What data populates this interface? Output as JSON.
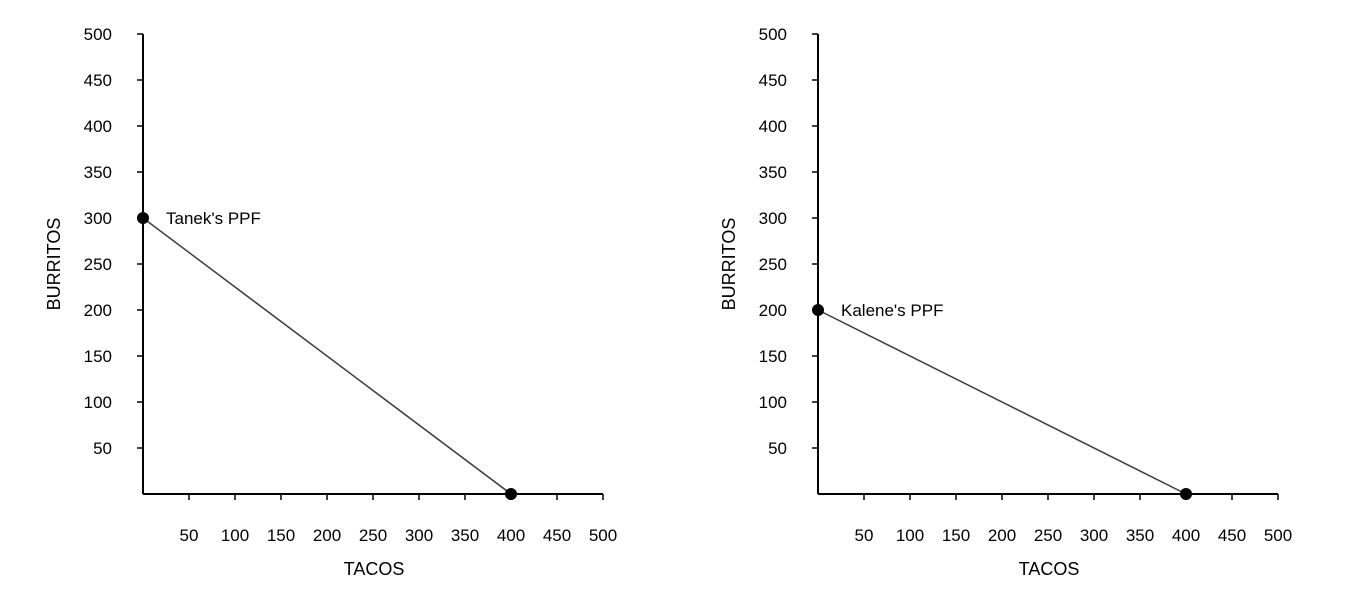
{
  "chart_data": [
    {
      "type": "line",
      "title": "",
      "xlabel": "TACOS",
      "ylabel": "BURRITOS",
      "xlim": [
        0,
        500
      ],
      "ylim": [
        0,
        500
      ],
      "xticks": [
        50,
        100,
        150,
        200,
        250,
        300,
        350,
        400,
        450,
        500
      ],
      "yticks": [
        50,
        100,
        150,
        200,
        250,
        300,
        350,
        400,
        450,
        500
      ],
      "grid": false,
      "series": [
        {
          "name": "Tanek's PPF",
          "x": [
            0,
            400
          ],
          "y": [
            300,
            0
          ]
        }
      ],
      "annotations": [
        {
          "text": "Tanek's PPF",
          "x": 0,
          "y": 300
        }
      ]
    },
    {
      "type": "line",
      "title": "",
      "xlabel": "TACOS",
      "ylabel": "BURRITOS",
      "xlim": [
        0,
        500
      ],
      "ylim": [
        0,
        500
      ],
      "xticks": [
        50,
        100,
        150,
        200,
        250,
        300,
        350,
        400,
        450,
        500
      ],
      "yticks": [
        50,
        100,
        150,
        200,
        250,
        300,
        350,
        400,
        450,
        500
      ],
      "grid": false,
      "series": [
        {
          "name": "Kalene's PPF",
          "x": [
            0,
            400
          ],
          "y": [
            200,
            0
          ]
        }
      ],
      "annotations": [
        {
          "text": "Kalene's PPF",
          "x": 0,
          "y": 200
        }
      ]
    }
  ],
  "colors": {
    "axis": "#000000",
    "line": "#404040",
    "point": "#000000",
    "text": "#000000"
  }
}
